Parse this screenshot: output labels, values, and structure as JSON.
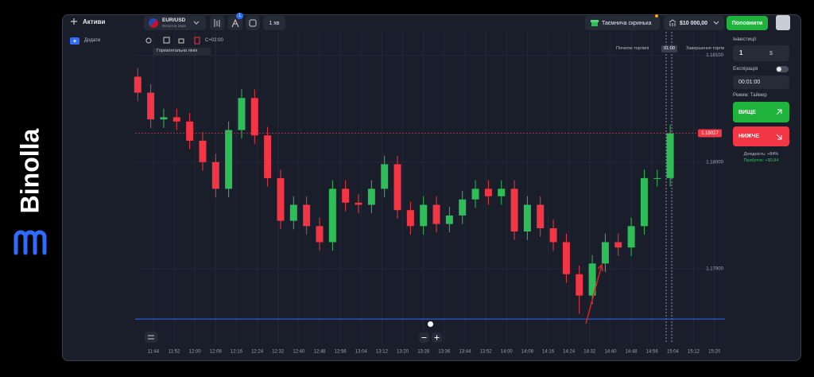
{
  "brand": "Binolla",
  "header": {
    "assets": "Активи",
    "pair": "EUR/USD",
    "pair_type": "Валютна пара",
    "badge": "1",
    "timeframe": "1 хв",
    "mystery_box": "Таємнича скринька",
    "balance": "$10 000,00",
    "deposit": "Поповнити"
  },
  "sidebar": {
    "add": "Додати"
  },
  "toolbar": {
    "timezone": "C+02:00",
    "drawing": "Горизонтальна лінія"
  },
  "markers": {
    "trade_start": "Початок торгівлі",
    "timer": "01:00",
    "trade_end": "Завершення торгів"
  },
  "chart_data": {
    "type": "candlestick",
    "x": [
      698,
      703,
      708,
      713,
      718,
      723,
      728,
      733,
      738,
      743,
      748,
      753,
      758,
      763,
      768,
      773,
      778,
      783,
      788,
      793,
      798,
      803,
      808,
      813,
      818,
      823,
      828,
      833,
      838,
      843,
      848,
      853,
      858,
      863,
      868,
      873,
      878,
      883,
      888,
      893,
      898,
      903
    ],
    "open": [
      1.1808,
      1.18065,
      1.1804,
      1.18042,
      1.18038,
      1.1802,
      1.18,
      1.17975,
      1.1803,
      1.1806,
      1.18025,
      1.17985,
      1.17945,
      1.1796,
      1.1794,
      1.17925,
      1.17975,
      1.17962,
      1.1796,
      1.17975,
      1.17998,
      1.17955,
      1.1794,
      1.1796,
      1.17942,
      1.1795,
      1.17965,
      1.17975,
      1.17968,
      1.17975,
      1.17935,
      1.1796,
      1.17938,
      1.17925,
      1.17895,
      1.17875,
      1.17905,
      1.17925,
      1.1792,
      1.1794,
      1.17985,
      1.17985
    ],
    "high": [
      1.18088,
      1.18073,
      1.1805,
      1.1805,
      1.18046,
      1.18028,
      1.18008,
      1.18038,
      1.18068,
      1.18068,
      1.18033,
      1.17993,
      1.17968,
      1.17968,
      1.17948,
      1.17983,
      1.17983,
      1.1797,
      1.17983,
      1.18006,
      1.18006,
      1.17963,
      1.17968,
      1.17968,
      1.17958,
      1.17973,
      1.17983,
      1.17983,
      1.17983,
      1.17983,
      1.17968,
      1.17968,
      1.17946,
      1.17933,
      1.17903,
      1.17913,
      1.17933,
      1.17933,
      1.17948,
      1.17993,
      1.17993,
      1.18035
    ],
    "low": [
      1.18057,
      1.18032,
      1.18032,
      1.1803,
      1.18012,
      1.17992,
      1.17967,
      1.17967,
      1.18022,
      1.18017,
      1.17977,
      1.17937,
      1.17937,
      1.17932,
      1.17917,
      1.17917,
      1.17954,
      1.17952,
      1.17952,
      1.17967,
      1.17947,
      1.17932,
      1.17932,
      1.17934,
      1.17934,
      1.17942,
      1.17957,
      1.1796,
      1.1796,
      1.17927,
      1.17927,
      1.1793,
      1.17917,
      1.17887,
      1.17858,
      1.17867,
      1.17897,
      1.17912,
      1.17912,
      1.17932,
      1.17977,
      1.17977
    ],
    "close": [
      1.18065,
      1.1804,
      1.18042,
      1.18038,
      1.1802,
      1.18,
      1.17975,
      1.1803,
      1.1806,
      1.18025,
      1.17985,
      1.17945,
      1.1796,
      1.1794,
      1.17925,
      1.17975,
      1.17962,
      1.1796,
      1.17975,
      1.17998,
      1.17955,
      1.1794,
      1.1796,
      1.17942,
      1.1795,
      1.17965,
      1.17975,
      1.17968,
      1.17975,
      1.17935,
      1.1796,
      1.17938,
      1.17925,
      1.17895,
      1.17875,
      1.17905,
      1.17925,
      1.1792,
      1.1794,
      1.17985,
      1.17985,
      1.18027
    ],
    "up_color": "#2ebd59",
    "down_color": "#f23645",
    "xlim": [
      697,
      925
    ],
    "xticks": [
      {
        "value": 704,
        "label": "11:44"
      },
      {
        "value": 712,
        "label": "11:52"
      },
      {
        "value": 720,
        "label": "12:00"
      },
      {
        "value": 728,
        "label": "12:08"
      },
      {
        "value": 736,
        "label": "12:16"
      },
      {
        "value": 744,
        "label": "12:24"
      },
      {
        "value": 752,
        "label": "12:32"
      },
      {
        "value": 760,
        "label": "12:40"
      },
      {
        "value": 768,
        "label": "12:48"
      },
      {
        "value": 776,
        "label": "12:56"
      },
      {
        "value": 784,
        "label": "13:04"
      },
      {
        "value": 792,
        "label": "13:12"
      },
      {
        "value": 800,
        "label": "13:20"
      },
      {
        "value": 808,
        "label": "13:28"
      },
      {
        "value": 816,
        "label": "13:36"
      },
      {
        "value": 824,
        "label": "13:44"
      },
      {
        "value": 832,
        "label": "13:52"
      },
      {
        "value": 840,
        "label": "14:00"
      },
      {
        "value": 848,
        "label": "14:08"
      },
      {
        "value": 856,
        "label": "14:16"
      },
      {
        "value": 864,
        "label": "14:24"
      },
      {
        "value": 872,
        "label": "14:32"
      },
      {
        "value": 880,
        "label": "14:40"
      },
      {
        "value": 888,
        "label": "14:48"
      },
      {
        "value": 896,
        "label": "14:56"
      },
      {
        "value": 904,
        "label": "15:04"
      },
      {
        "value": 912,
        "label": "15:12"
      },
      {
        "value": 920,
        "label": "15:20"
      }
    ],
    "ylim": [
      1.1783,
      1.18122
    ],
    "yticks": [
      {
        "value": 1.181,
        "label": "1.18100"
      },
      {
        "value": 1.18,
        "label": "1.18000"
      },
      {
        "value": 1.179,
        "label": "1.17900"
      }
    ],
    "current_price": 1.18027,
    "horizontal_line": 1.17853,
    "grid": true
  },
  "panel": {
    "investment": "Інвестиції",
    "amount": "1",
    "currency": "$",
    "expiration": "Експірація",
    "time": "00:01:00",
    "mode": "Режим: Таймер",
    "higher": "ВИЩЕ",
    "lower": "НИЖЧЕ",
    "yield": "Дохідність: +84%",
    "profit": "Прибуток: +$0,84"
  }
}
